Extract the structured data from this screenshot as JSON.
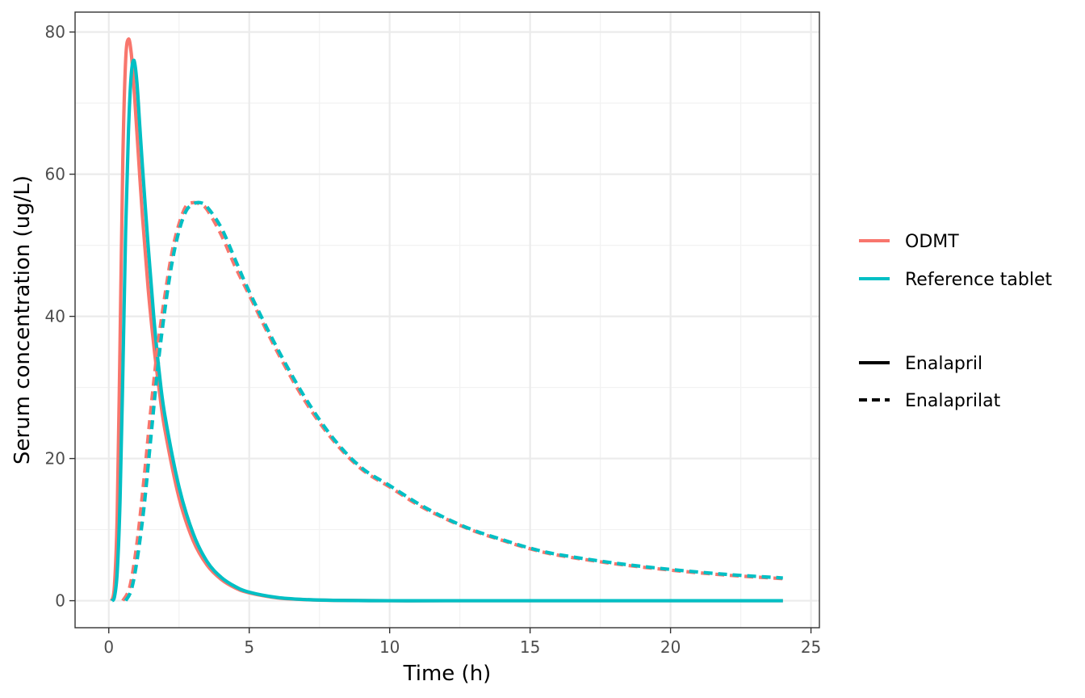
{
  "chart_data": {
    "type": "line",
    "xlabel": "Time (h)",
    "ylabel": "Serum concentration (ug/L)",
    "xlim": [
      -1.2,
      25.3
    ],
    "ylim": [
      -3.8,
      82.8
    ],
    "x_ticks": [
      0,
      5,
      10,
      15,
      20,
      25
    ],
    "y_ticks": [
      0,
      20,
      40,
      60,
      80
    ],
    "grid": true,
    "legend_position": "right",
    "colors": {
      "ODMT": "#F8766D",
      "Reference tablet": "#00BFC4"
    },
    "legend": {
      "color": [
        {
          "label": "ODMT",
          "color": "#F8766D"
        },
        {
          "label": "Reference tablet",
          "color": "#00BFC4"
        }
      ],
      "linetype": [
        {
          "label": "Enalapril",
          "dash": "solid"
        },
        {
          "label": "Enalaprilat",
          "dash": "dashed"
        }
      ]
    },
    "series": [
      {
        "name": "ODMT",
        "compound": "Enalapril",
        "color": "#F8766D",
        "dash": "solid",
        "x": [
          0.1,
          0.2,
          0.3,
          0.4,
          0.5,
          0.6,
          0.7,
          0.8,
          0.9,
          1.0,
          1.2,
          1.4,
          1.6,
          1.8,
          2.0,
          2.5,
          3.0,
          3.5,
          4.0,
          4.5,
          5.0,
          6.0,
          7.0,
          8.0,
          10.0,
          12.0,
          16.0,
          20.0,
          24.0
        ],
        "y": [
          0,
          2,
          12,
          36,
          62,
          76,
          79,
          77,
          72,
          66,
          54,
          44,
          36,
          29.5,
          24,
          14.5,
          8.5,
          5,
          3,
          1.8,
          1.1,
          0.4,
          0.15,
          0.05,
          0,
          0,
          0,
          0,
          0
        ]
      },
      {
        "name": "Reference tablet",
        "compound": "Enalapril",
        "color": "#00BFC4",
        "dash": "solid",
        "x": [
          0.1,
          0.2,
          0.3,
          0.4,
          0.5,
          0.6,
          0.7,
          0.8,
          0.9,
          1.0,
          1.1,
          1.2,
          1.4,
          1.6,
          1.8,
          2.0,
          2.5,
          3.0,
          3.5,
          4.0,
          4.5,
          5.0,
          6.0,
          7.0,
          8.0,
          10.0,
          12.0,
          16.0,
          20.0,
          24.0
        ],
        "y": [
          0,
          0.5,
          4,
          14,
          32,
          52,
          66,
          74,
          76,
          73,
          67,
          61,
          50,
          40,
          32,
          26,
          16,
          9.5,
          5.5,
          3.3,
          2,
          1.2,
          0.45,
          0.16,
          0.05,
          0,
          0,
          0,
          0,
          0
        ]
      },
      {
        "name": "ODMT",
        "compound": "Enalaprilat",
        "color": "#F8766D",
        "dash": "dashed",
        "x": [
          0.5,
          0.75,
          1.0,
          1.25,
          1.5,
          1.75,
          2.0,
          2.25,
          2.5,
          2.75,
          3.0,
          3.25,
          3.5,
          4.0,
          4.5,
          5.0,
          6.0,
          7.0,
          8.0,
          9.0,
          10.0,
          11.0,
          12.0,
          13.0,
          14.0,
          15.0,
          16.0,
          18.0,
          20.0,
          22.0,
          24.0
        ],
        "y": [
          0,
          2,
          8,
          17,
          27,
          36,
          43,
          49,
          53,
          55.5,
          56,
          55.8,
          55,
          51.5,
          47,
          43,
          35,
          28,
          22.5,
          18.5,
          16,
          13.5,
          11.5,
          9.8,
          8.5,
          7.3,
          6.4,
          5.2,
          4.3,
          3.6,
          3.1
        ]
      },
      {
        "name": "Reference tablet",
        "compound": "Enalaprilat",
        "color": "#00BFC4",
        "dash": "dashed",
        "x": [
          0.6,
          0.8,
          1.0,
          1.25,
          1.5,
          1.75,
          2.0,
          2.25,
          2.5,
          2.75,
          3.0,
          3.25,
          3.5,
          4.0,
          4.5,
          5.0,
          6.0,
          7.0,
          8.0,
          9.0,
          10.0,
          11.0,
          12.0,
          13.0,
          14.0,
          15.0,
          16.0,
          18.0,
          20.0,
          22.0,
          24.0
        ],
        "y": [
          0,
          1.5,
          5.5,
          13,
          23,
          33,
          41,
          47.5,
          52,
          54.8,
          55.8,
          56,
          55.4,
          52.5,
          48,
          43.5,
          35.5,
          28.5,
          22.8,
          18.7,
          16.2,
          13.7,
          11.6,
          9.9,
          8.6,
          7.4,
          6.5,
          5.3,
          4.4,
          3.7,
          3.2
        ]
      }
    ]
  }
}
